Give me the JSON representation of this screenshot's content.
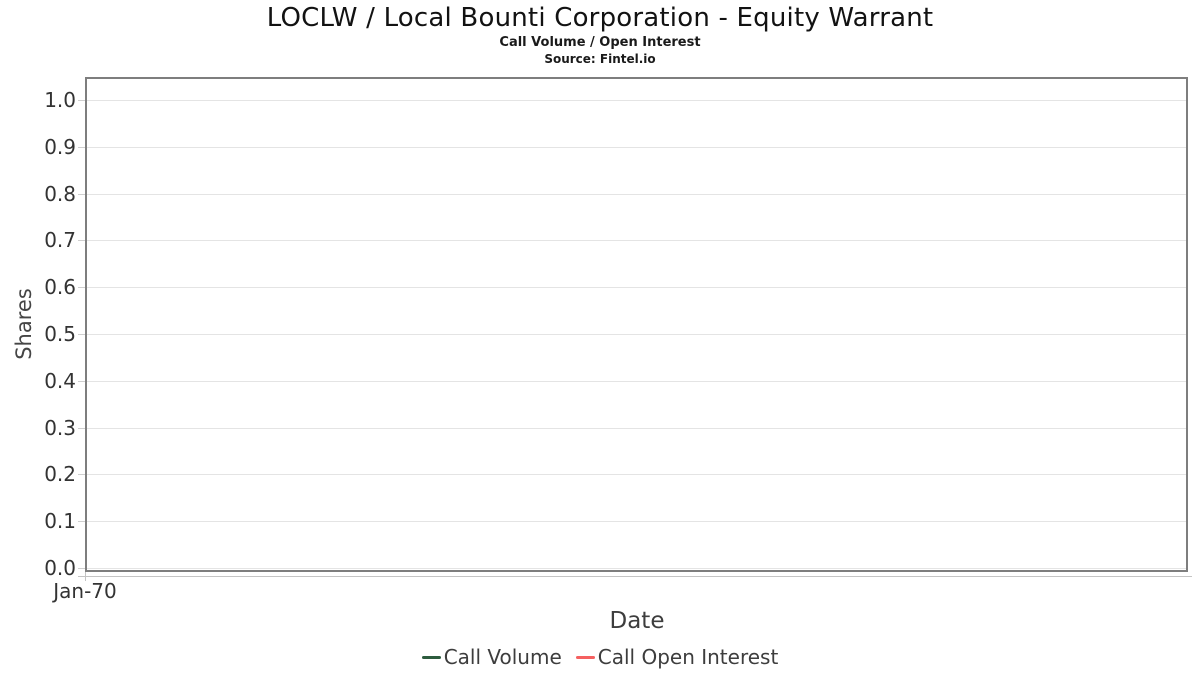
{
  "header": {
    "title": "LOCLW / Local Bounti Corporation - Equity Warrant",
    "subtitle": "Call Volume / Open Interest",
    "source": "Source: Fintel.io"
  },
  "axes": {
    "y_label": "Shares",
    "x_label": "Date",
    "x_tick_label": "Jan-70",
    "y_tick_labels": [
      "1.0",
      "0.9",
      "0.8",
      "0.7",
      "0.6",
      "0.5",
      "0.4",
      "0.3",
      "0.2",
      "0.1",
      "0.0"
    ]
  },
  "legend": {
    "items": [
      {
        "label": "Call Volume",
        "color": "#2d5c3e"
      },
      {
        "label": "Call Open Interest",
        "color": "#f56060"
      }
    ]
  },
  "colors": {
    "call_volume": "#2d5c3e",
    "call_open_interest": "#f56060",
    "gridline": "#e4e4e4",
    "plot_border": "#7e7e7e",
    "text": "#333333"
  },
  "chart_data": {
    "type": "line",
    "title": "LOCLW / Local Bounti Corporation - Equity Warrant",
    "subtitle": "Call Volume / Open Interest",
    "source": "Source: Fintel.io",
    "xlabel": "Date",
    "ylabel": "Shares",
    "x_tick_labels": [
      "Jan-70"
    ],
    "y_ticks": [
      0.0,
      0.1,
      0.2,
      0.3,
      0.4,
      0.5,
      0.6,
      0.7,
      0.8,
      0.9,
      1.0
    ],
    "ylim": [
      0.0,
      1.05
    ],
    "grid": "horizontal",
    "legend_position": "bottom",
    "series": [
      {
        "name": "Call Volume",
        "color": "#2d5c3e",
        "x": [],
        "values": []
      },
      {
        "name": "Call Open Interest",
        "color": "#f56060",
        "x": [],
        "values": []
      }
    ]
  }
}
